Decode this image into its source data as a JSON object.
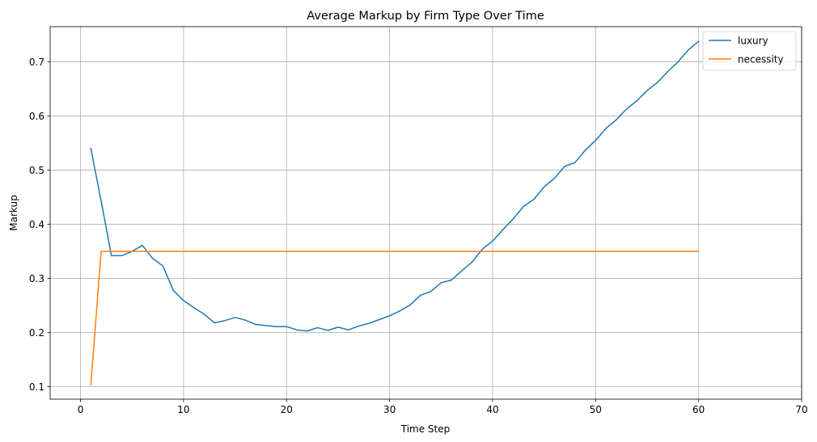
{
  "chart_data": {
    "type": "line",
    "title": "Average Markup by Firm Type Over Time",
    "xlabel": "Time Step",
    "ylabel": "Markup",
    "xlim": [
      -2.95,
      70
    ],
    "ylim": [
      0.077,
      0.765
    ],
    "xticks": [
      0,
      10,
      20,
      30,
      40,
      50,
      60,
      70
    ],
    "yticks": [
      0.1,
      0.2,
      0.3,
      0.4,
      0.5,
      0.6,
      0.7
    ],
    "grid": true,
    "legend_position": "top-right",
    "series": [
      {
        "name": "luxury",
        "color": "#1f77b4",
        "x": [
          1,
          2,
          3,
          4,
          5,
          6,
          7,
          8,
          9,
          10,
          11,
          12,
          13,
          14,
          15,
          16,
          17,
          18,
          19,
          20,
          21,
          22,
          23,
          24,
          25,
          26,
          27,
          28,
          29,
          30,
          31,
          32,
          33,
          34,
          35,
          36,
          37,
          38,
          39,
          40,
          41,
          42,
          43,
          44,
          45,
          46,
          47,
          48,
          49,
          50,
          51,
          52,
          53,
          54,
          55,
          56,
          57,
          58,
          59,
          60
        ],
        "y": [
          0.54,
          0.443,
          0.342,
          0.342,
          0.35,
          0.361,
          0.337,
          0.323,
          0.278,
          0.259,
          0.246,
          0.234,
          0.218,
          0.222,
          0.228,
          0.223,
          0.215,
          0.213,
          0.211,
          0.211,
          0.205,
          0.203,
          0.209,
          0.204,
          0.21,
          0.205,
          0.212,
          0.217,
          0.224,
          0.231,
          0.24,
          0.251,
          0.269,
          0.276,
          0.292,
          0.297,
          0.314,
          0.33,
          0.354,
          0.369,
          0.39,
          0.41,
          0.433,
          0.446,
          0.469,
          0.485,
          0.507,
          0.514,
          0.537,
          0.555,
          0.577,
          0.593,
          0.613,
          0.628,
          0.647,
          0.662,
          0.682,
          0.7,
          0.722,
          0.738
        ]
      },
      {
        "name": "necessity",
        "color": "#ff7f0e",
        "x": [
          1,
          2,
          3,
          4,
          5,
          6,
          7,
          8,
          9,
          10,
          11,
          12,
          13,
          14,
          15,
          16,
          17,
          18,
          19,
          20,
          21,
          22,
          23,
          24,
          25,
          26,
          27,
          28,
          29,
          30,
          31,
          32,
          33,
          34,
          35,
          36,
          37,
          38,
          39,
          40,
          41,
          42,
          43,
          44,
          45,
          46,
          47,
          48,
          49,
          50,
          51,
          52,
          53,
          54,
          55,
          56,
          57,
          58,
          59,
          60
        ],
        "y": [
          0.103,
          0.35,
          0.35,
          0.35,
          0.35,
          0.35,
          0.35,
          0.35,
          0.35,
          0.35,
          0.35,
          0.35,
          0.35,
          0.35,
          0.35,
          0.35,
          0.35,
          0.35,
          0.35,
          0.35,
          0.35,
          0.35,
          0.35,
          0.35,
          0.35,
          0.35,
          0.35,
          0.35,
          0.35,
          0.35,
          0.35,
          0.35,
          0.35,
          0.35,
          0.35,
          0.35,
          0.35,
          0.35,
          0.35,
          0.35,
          0.35,
          0.35,
          0.35,
          0.35,
          0.35,
          0.35,
          0.35,
          0.35,
          0.35,
          0.35,
          0.35,
          0.35,
          0.35,
          0.35,
          0.35,
          0.35,
          0.35,
          0.35,
          0.35,
          0.35
        ]
      }
    ]
  }
}
